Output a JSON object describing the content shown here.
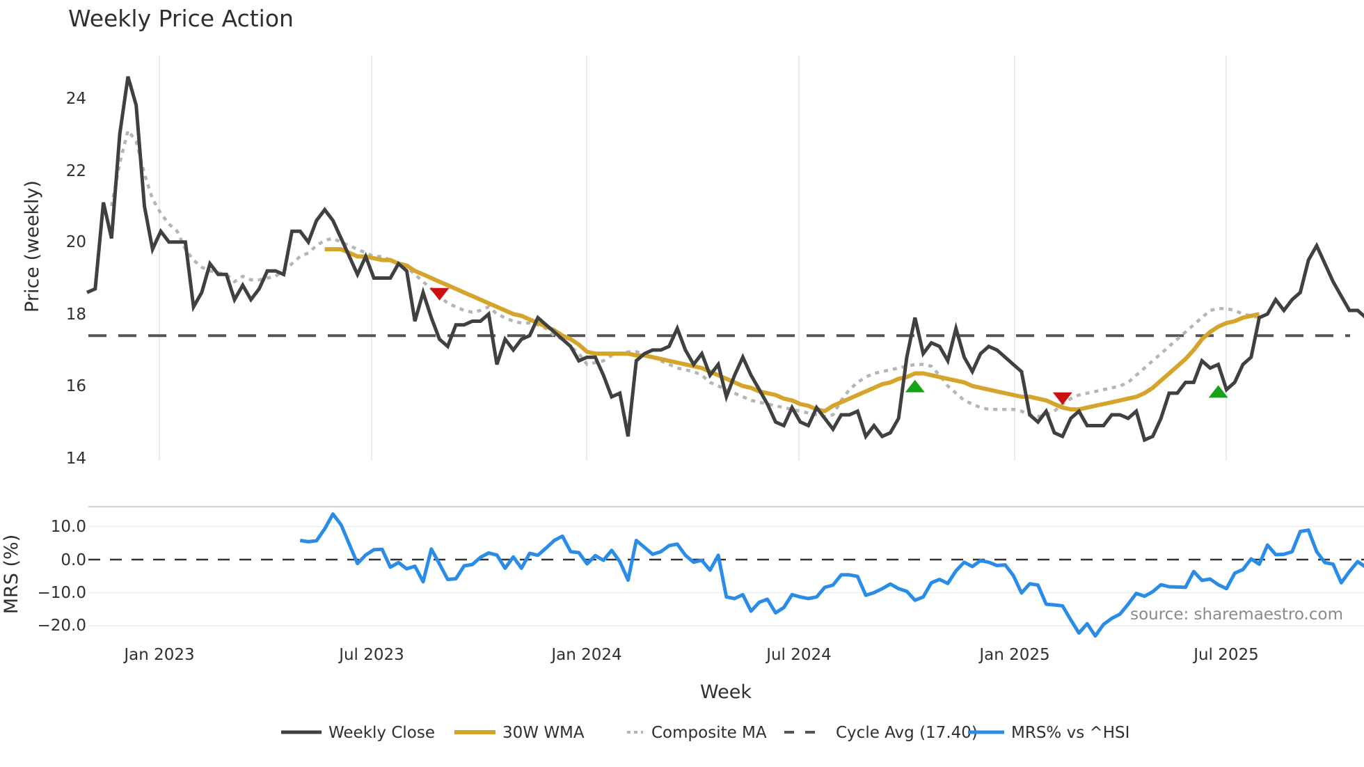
{
  "chart_data": [
    {
      "panel": "price",
      "type": "line",
      "title": "Weekly Price Action",
      "xlabel": "Week",
      "ylabel": "Price (weekly)",
      "ylim": [
        14,
        25
      ],
      "yticks": [
        14,
        16,
        18,
        20,
        22,
        24
      ],
      "xticks": [
        "Jan 2023",
        "Jul 2023",
        "Jan 2024",
        "Jul 2024",
        "Jan 2025",
        "Jul 2025"
      ],
      "grid": {
        "vertical": true,
        "horizontal": false
      },
      "start_week_index_note": "weekly samples, ~Nov 2022 to ~Nov 2025",
      "series": [
        {
          "name": "Weekly Close",
          "color": "#404040",
          "style": "solid",
          "values": [
            18.6,
            18.7,
            21.1,
            20.1,
            23.0,
            24.6,
            23.8,
            21.0,
            19.8,
            20.3,
            20.0,
            20.0,
            20.0,
            18.2,
            18.6,
            19.4,
            19.1,
            19.1,
            18.4,
            18.8,
            18.4,
            18.7,
            19.2,
            19.2,
            19.1,
            20.3,
            20.3,
            20.0,
            20.6,
            20.9,
            20.6,
            20.1,
            19.6,
            19.1,
            19.6,
            19.0,
            19.0,
            19.0,
            19.4,
            19.2,
            17.8,
            18.6,
            17.9,
            17.3,
            17.1,
            17.7,
            17.7,
            17.8,
            17.8,
            18.0,
            16.6,
            17.3,
            17.0,
            17.3,
            17.4,
            17.9,
            17.7,
            17.5,
            17.3,
            17.1,
            16.7,
            16.8,
            16.8,
            16.3,
            15.7,
            15.8,
            14.6,
            16.7,
            16.9,
            17.0,
            17.0,
            17.1,
            17.6,
            17.0,
            16.6,
            16.9,
            16.3,
            16.6,
            15.7,
            16.3,
            16.8,
            16.3,
            15.9,
            15.5,
            15.0,
            14.9,
            15.4,
            15.0,
            14.9,
            15.4,
            15.1,
            14.8,
            15.2,
            15.2,
            15.3,
            14.6,
            14.9,
            14.6,
            14.7,
            15.1,
            16.8,
            17.9,
            16.9,
            17.2,
            17.1,
            16.7,
            17.6,
            16.8,
            16.4,
            16.9,
            17.1,
            17.0,
            16.8,
            16.6,
            16.4,
            15.2,
            15.0,
            15.3,
            14.7,
            14.6,
            15.1,
            15.3,
            14.9,
            14.9,
            14.9,
            15.2,
            15.2,
            15.1,
            15.3,
            14.5,
            14.6,
            15.1,
            15.8,
            15.8,
            16.1,
            16.1,
            16.7,
            16.5,
            16.6,
            15.9,
            16.1,
            16.6,
            16.8,
            17.9,
            18.0,
            18.4,
            18.1,
            18.4,
            18.6,
            19.5,
            19.9,
            19.4,
            18.9,
            18.5,
            18.1,
            18.1,
            17.9,
            17.9,
            18.0,
            17.7
          ]
        },
        {
          "name": "30W WMA",
          "color": "#d4a52a",
          "style": "solid",
          "start_index": 29,
          "values": [
            19.8,
            19.8,
            19.8,
            19.7,
            19.6,
            19.6,
            19.55,
            19.5,
            19.5,
            19.4,
            19.35,
            19.2,
            19.1,
            19.0,
            18.9,
            18.8,
            18.7,
            18.6,
            18.5,
            18.4,
            18.3,
            18.2,
            18.1,
            18.0,
            17.95,
            17.85,
            17.75,
            17.65,
            17.55,
            17.4,
            17.3,
            17.15,
            16.95,
            16.9,
            16.9,
            16.9,
            16.9,
            16.9,
            16.85,
            16.85,
            16.8,
            16.75,
            16.7,
            16.65,
            16.6,
            16.55,
            16.5,
            16.4,
            16.3,
            16.2,
            16.1,
            16.0,
            15.95,
            15.85,
            15.8,
            15.75,
            15.65,
            15.6,
            15.5,
            15.45,
            15.35,
            15.3,
            15.45,
            15.55,
            15.65,
            15.75,
            15.85,
            15.95,
            16.05,
            16.1,
            16.2,
            16.25,
            16.35,
            16.35,
            16.3,
            16.25,
            16.2,
            16.15,
            16.1,
            16.0,
            15.95,
            15.9,
            15.85,
            15.8,
            15.75,
            15.7,
            15.7,
            15.65,
            15.6,
            15.5,
            15.4,
            15.35,
            15.35,
            15.4,
            15.45,
            15.5,
            15.55,
            15.6,
            15.65,
            15.7,
            15.8,
            15.95,
            16.15,
            16.35,
            16.55,
            16.75,
            17.0,
            17.3,
            17.5,
            17.65,
            17.75,
            17.8,
            17.9,
            17.95,
            18.0
          ]
        },
        {
          "name": "Composite MA",
          "color": "#b5b5b5",
          "style": "dotted",
          "start_index": 3,
          "values": [
            21.0,
            22.2,
            23.1,
            22.8,
            21.9,
            21.2,
            20.8,
            20.5,
            20.3,
            19.8,
            19.5,
            19.3,
            19.2,
            19.15,
            19.1,
            18.9,
            19.05,
            18.95,
            18.95,
            19.0,
            19.05,
            19.2,
            19.4,
            19.6,
            19.7,
            19.9,
            20.05,
            20.1,
            20.0,
            19.9,
            19.8,
            19.7,
            19.6,
            19.6,
            19.5,
            19.4,
            19.3,
            19.1,
            18.9,
            18.7,
            18.5,
            18.3,
            18.2,
            18.1,
            18.05,
            18.1,
            18.2,
            18.0,
            17.9,
            17.8,
            17.75,
            17.75,
            17.7,
            17.6,
            17.4,
            17.3,
            17.1,
            16.9,
            16.6,
            16.65,
            16.7,
            16.85,
            16.9,
            16.95,
            16.95,
            16.9,
            16.8,
            16.7,
            16.6,
            16.5,
            16.45,
            16.4,
            16.3,
            16.1,
            16.0,
            15.9,
            15.8,
            15.7,
            15.6,
            15.55,
            15.5,
            15.45,
            15.4,
            15.35,
            15.3,
            15.25,
            15.2,
            15.15,
            15.2,
            15.6,
            15.9,
            16.1,
            16.25,
            16.35,
            16.4,
            16.45,
            16.5,
            16.55,
            16.6,
            16.6,
            16.55,
            16.3,
            16.0,
            15.8,
            15.6,
            15.5,
            15.4,
            15.35,
            15.35,
            15.35,
            15.35,
            15.3,
            15.2,
            15.15,
            15.2,
            15.3,
            15.5,
            15.65,
            15.75,
            15.8,
            15.85,
            15.9,
            15.95,
            16.0,
            16.1,
            16.3,
            16.5,
            16.7,
            16.9,
            17.1,
            17.3,
            17.5,
            17.7,
            17.9,
            18.1,
            18.15,
            18.15,
            18.1,
            18.0,
            17.95,
            17.9
          ]
        },
        {
          "name": "Cycle Avg (17.40)",
          "color": "#555555",
          "style": "dashed",
          "value": 17.4
        }
      ],
      "markers": [
        {
          "type": "sell",
          "shape": "triangle-down",
          "color": "#cc1111",
          "week_index": 43,
          "y": 18.55
        },
        {
          "type": "buy",
          "shape": "triangle-up",
          "color": "#17a317",
          "week_index": 101,
          "y": 16.0
        },
        {
          "type": "sell",
          "shape": "triangle-down",
          "color": "#cc1111",
          "week_index": 119,
          "y": 15.65
        },
        {
          "type": "buy",
          "shape": "triangle-up",
          "color": "#17a317",
          "week_index": 138,
          "y": 15.85
        }
      ]
    },
    {
      "panel": "mrs",
      "type": "line",
      "ylabel": "MRS (%)",
      "ylim": [
        -24,
        16
      ],
      "yticks": [
        "10.0",
        "0.0",
        "−10.0",
        "−20.0"
      ],
      "grid": {
        "horizontal": true
      },
      "series": [
        {
          "name": "MRS% vs ^HSI",
          "color": "#2a8ce6",
          "style": "solid",
          "start_index": 26,
          "values": [
            5.8,
            5.4,
            5.7,
            9.3,
            13.8,
            10.5,
            4.6,
            -1.2,
            1.4,
            3.0,
            3.1,
            -2.3,
            -0.9,
            -2.8,
            -2.0,
            -6.7,
            3.2,
            -1.3,
            -6.0,
            -5.8,
            -1.9,
            -1.5,
            0.7,
            2.0,
            1.4,
            -2.6,
            0.8,
            -2.6,
            1.9,
            1.3,
            3.5,
            5.8,
            7.1,
            2.4,
            2.1,
            -1.3,
            1.2,
            -0.2,
            2.8,
            -0.6,
            -6.2,
            5.8,
            3.7,
            1.6,
            2.4,
            4.2,
            4.7,
            1.3,
            -0.8,
            -0.2,
            -3.2,
            1.3,
            -11.3,
            -11.8,
            -10.6,
            -15.6,
            -12.9,
            -12.0,
            -16.1,
            -14.5,
            -10.6,
            -11.3,
            -11.8,
            -11.3,
            -8.4,
            -7.7,
            -4.6,
            -4.6,
            -5.1,
            -10.8,
            -10.0,
            -8.8,
            -7.4,
            -8.8,
            -9.6,
            -12.3,
            -11.3,
            -7.0,
            -6.0,
            -7.2,
            -3.4,
            -0.8,
            -2.1,
            -0.3,
            -0.8,
            -1.8,
            -1.6,
            -4.8,
            -10.1,
            -7.3,
            -7.7,
            -13.5,
            -13.7,
            -14.0,
            -18.2,
            -22.2,
            -19.4,
            -23.1,
            -19.6,
            -17.8,
            -16.5,
            -13.5,
            -10.2,
            -11.1,
            -9.7,
            -7.6,
            -8.2,
            -8.3,
            -8.4,
            -3.6,
            -6.3,
            -5.9,
            -7.6,
            -8.8,
            -4.1,
            -3.0,
            0.2,
            -1.4,
            4.4,
            1.5,
            1.6,
            2.4,
            8.5,
            8.9,
            2.4,
            -0.9,
            -1.4,
            -7.0,
            -3.6,
            -0.6,
            -2.3,
            -4.8
          ]
        }
      ]
    }
  ],
  "header": {
    "title": "Weekly Price Action"
  },
  "axes": {
    "price_ylabel": "Price (weekly)",
    "mrs_ylabel": "MRS (%)",
    "xlabel": "Week",
    "price_yticks": [
      "24",
      "22",
      "20",
      "18",
      "16",
      "14"
    ],
    "mrs_yticks": [
      "10.0",
      "0.0",
      "−10.0",
      "−20.0"
    ],
    "xticks": [
      "Jan 2023",
      "Jul 2023",
      "Jan 2024",
      "Jul 2024",
      "Jan 2025",
      "Jul 2025"
    ]
  },
  "legend": {
    "items": [
      {
        "label": "Weekly Close",
        "color": "#404040"
      },
      {
        "label": "30W WMA",
        "color": "#d4a52a"
      },
      {
        "label": "Composite MA",
        "color": "#b5b5b5"
      },
      {
        "label": "Cycle Avg (17.40)",
        "color": "#555555"
      },
      {
        "label": "MRS% vs ^HSI",
        "color": "#2a8ce6"
      }
    ]
  },
  "annotation": {
    "source": "source: sharemaestro.com"
  }
}
